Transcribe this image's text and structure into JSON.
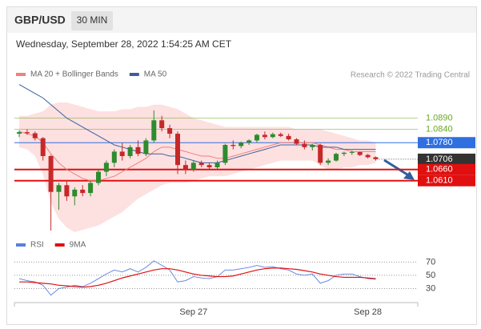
{
  "header": {
    "symbol": "GBP/USD",
    "timeframe": "30 MIN",
    "datetime": "Wednesday, September 28, 2022 1:54:25 AM CET"
  },
  "chart_data": [
    {
      "type": "candlestick",
      "source": "Research © 2022 Trading Central",
      "categories": [
        null,
        null,
        null,
        null,
        null,
        null,
        null,
        null,
        null,
        null,
        null,
        null,
        null,
        null,
        null,
        null,
        null,
        null,
        null,
        null,
        null,
        null,
        "Sep 27",
        null,
        null,
        null,
        null,
        null,
        null,
        null,
        null,
        null,
        null,
        null,
        null,
        null,
        null,
        null,
        null,
        null,
        null,
        null,
        null,
        null,
        "Sep 28",
        null
      ],
      "open": [
        1.082,
        1.0827,
        1.0822,
        1.08,
        1.072,
        1.056,
        1.059,
        1.054,
        1.057,
        1.0555,
        1.06,
        1.065,
        1.069,
        1.074,
        1.072,
        1.076,
        1.073,
        1.079,
        1.088,
        1.0845,
        1.082,
        1.068,
        1.066,
        1.069,
        1.068,
        1.067,
        1.069,
        1.077,
        1.0765,
        1.078,
        1.079,
        1.0815,
        1.0805,
        1.0818,
        1.081,
        1.0795,
        1.0775,
        1.076,
        1.077,
        1.069,
        1.07,
        1.073,
        1.0735,
        1.0738,
        1.0725,
        1.0715
      ],
      "high": [
        1.0835,
        1.084,
        1.083,
        1.0805,
        1.0725,
        1.06,
        1.061,
        1.058,
        1.059,
        1.061,
        1.066,
        1.07,
        1.075,
        1.078,
        1.077,
        1.079,
        1.08,
        1.0924,
        1.09,
        1.086,
        1.083,
        1.07,
        1.07,
        1.07,
        1.069,
        1.07,
        1.0775,
        1.079,
        1.0785,
        1.0795,
        1.082,
        1.083,
        1.0825,
        1.0825,
        1.082,
        1.08,
        1.079,
        1.0775,
        1.0775,
        1.071,
        1.0735,
        1.074,
        1.0745,
        1.074,
        1.073,
        1.0718
      ],
      "low": [
        1.0805,
        1.0815,
        1.079,
        1.07,
        1.0387,
        1.048,
        1.052,
        1.05,
        1.054,
        1.054,
        1.059,
        1.063,
        1.067,
        1.07,
        1.071,
        1.072,
        1.072,
        1.078,
        1.083,
        1.08,
        1.064,
        1.064,
        1.065,
        1.067,
        1.066,
        1.066,
        1.068,
        1.075,
        1.0755,
        1.077,
        1.078,
        1.0795,
        1.08,
        1.0805,
        1.079,
        1.077,
        1.075,
        1.0745,
        1.068,
        1.068,
        1.0695,
        1.072,
        1.0725,
        1.072,
        1.071,
        1.07
      ],
      "close": [
        1.0827,
        1.0822,
        1.08,
        1.072,
        1.056,
        1.059,
        1.054,
        1.057,
        1.0555,
        1.06,
        1.065,
        1.069,
        1.074,
        1.072,
        1.076,
        1.073,
        1.079,
        1.088,
        1.0845,
        1.082,
        1.068,
        1.066,
        1.069,
        1.068,
        1.067,
        1.069,
        1.077,
        1.0765,
        1.078,
        1.079,
        1.0815,
        1.0805,
        1.0818,
        1.081,
        1.0795,
        1.0775,
        1.076,
        1.077,
        1.069,
        1.07,
        1.073,
        1.0735,
        1.0738,
        1.0725,
        1.0715,
        1.0706
      ],
      "up_color": "#2e8b2e",
      "down_color": "#c62828",
      "series": [
        {
          "name": "MA 20 + Bollinger Bands",
          "color": "#f08080",
          "band_color": "#fde0e0",
          "values": [
            1.083,
            1.082,
            1.081,
            1.078,
            1.073,
            1.069,
            1.066,
            1.064,
            1.062,
            1.061,
            1.061,
            1.062,
            1.063,
            1.065,
            1.067,
            1.069,
            1.071,
            1.074,
            1.076,
            1.076,
            1.075,
            1.074,
            1.073,
            1.072,
            1.072,
            1.071,
            1.071,
            1.072,
            1.073,
            1.074,
            1.075,
            1.076,
            1.077,
            1.078,
            1.078,
            1.078,
            1.078,
            1.078,
            1.077,
            1.076,
            1.075,
            1.075,
            1.074,
            1.074,
            1.074,
            1.074
          ],
          "upper": [
            1.09,
            1.09,
            1.091,
            1.092,
            1.095,
            1.096,
            1.096,
            1.095,
            1.094,
            1.093,
            1.092,
            1.092,
            1.092,
            1.093,
            1.093,
            1.094,
            1.094,
            1.095,
            1.095,
            1.094,
            1.093,
            1.091,
            1.089,
            1.088,
            1.087,
            1.086,
            1.085,
            1.085,
            1.085,
            1.085,
            1.085,
            1.085,
            1.085,
            1.085,
            1.085,
            1.084,
            1.084,
            1.084,
            1.084,
            1.083,
            1.082,
            1.081,
            1.08,
            1.079,
            1.079,
            1.078
          ],
          "lower": [
            1.076,
            1.075,
            1.072,
            1.064,
            1.051,
            1.044,
            1.04,
            1.038,
            1.039,
            1.04,
            1.041,
            1.043,
            1.045,
            1.047,
            1.05,
            1.053,
            1.055,
            1.057,
            1.059,
            1.06,
            1.06,
            1.06,
            1.061,
            1.062,
            1.063,
            1.063,
            1.063,
            1.064,
            1.065,
            1.066,
            1.067,
            1.068,
            1.069,
            1.07,
            1.07,
            1.07,
            1.07,
            1.07,
            1.068,
            1.066,
            1.066,
            1.067,
            1.067,
            1.068,
            1.068,
            1.069
          ]
        },
        {
          "name": "MA 50",
          "color": "#3a5f9f",
          "values": [
            1.104,
            1.102,
            1.1,
            1.098,
            1.095,
            1.092,
            1.089,
            1.087,
            1.085,
            1.083,
            1.081,
            1.079,
            1.077,
            1.076,
            1.075,
            1.074,
            1.073,
            1.073,
            1.073,
            1.072,
            1.072,
            1.071,
            1.07,
            1.069,
            1.069,
            1.069,
            1.07,
            1.071,
            1.072,
            1.073,
            1.074,
            1.075,
            1.076,
            1.077,
            1.077,
            1.077,
            1.077,
            1.077,
            1.076,
            1.076,
            1.076,
            1.075,
            1.075,
            1.075,
            1.075,
            1.075
          ]
        }
      ],
      "levels": [
        {
          "value": 1.089,
          "label": "1.0890",
          "color": "#66aa22",
          "boxed": false,
          "dotted": false
        },
        {
          "value": 1.084,
          "label": "1.0840",
          "color": "#66aa22",
          "boxed": false,
          "dotted": false
        },
        {
          "value": 1.078,
          "label": "1.0780",
          "color": "#2f6fe0",
          "boxed": true,
          "dotted": false
        },
        {
          "value": 1.0706,
          "label": "1.0706",
          "color": "#333333",
          "boxed": true,
          "dotted": true
        },
        {
          "value": 1.066,
          "label": "1.0660",
          "color": "#e01010",
          "boxed": true,
          "dotted": false
        },
        {
          "value": 1.061,
          "label": "1.0610",
          "color": "#e01010",
          "boxed": true,
          "dotted": false
        }
      ],
      "ylim": [
        1.038,
        1.106
      ]
    },
    {
      "type": "line",
      "series": [
        {
          "name": "RSI",
          "color": "#5b7fdc",
          "values": [
            45,
            42,
            40,
            35,
            20,
            30,
            32,
            35,
            33,
            38,
            45,
            52,
            58,
            55,
            60,
            55,
            62,
            72,
            65,
            58,
            40,
            42,
            48,
            46,
            45,
            48,
            58,
            58,
            60,
            62,
            65,
            62,
            63,
            60,
            58,
            52,
            50,
            52,
            38,
            42,
            50,
            52,
            52,
            48,
            45,
            44
          ]
        },
        {
          "name": "9MA",
          "color": "#e01010",
          "values": [
            40,
            40,
            39,
            38,
            37,
            35,
            34,
            33,
            32,
            33,
            35,
            38,
            42,
            46,
            49,
            52,
            55,
            58,
            60,
            60,
            58,
            55,
            52,
            50,
            49,
            48,
            48,
            49,
            52,
            55,
            58,
            60,
            61,
            61,
            60,
            59,
            57,
            55,
            52,
            50,
            48,
            47,
            47,
            47,
            46,
            45
          ]
        }
      ],
      "ylim": [
        10,
        85
      ],
      "yticks": [
        70,
        50,
        30
      ]
    }
  ]
}
